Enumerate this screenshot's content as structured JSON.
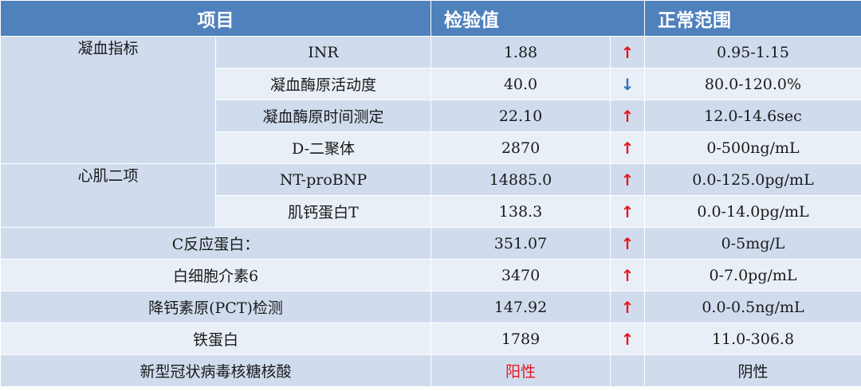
{
  "header": {
    "item": "项目",
    "value": "检验值",
    "range": "正常范围"
  },
  "groups": {
    "coag": "凝血指标",
    "cardiac": "心肌二项"
  },
  "rows": [
    {
      "name": "INR",
      "value": "1.88",
      "flag": "↑",
      "range": "0.95-1.15"
    },
    {
      "name": "凝血酶原活动度",
      "value": "40.0",
      "flag": "↓",
      "range": "80.0-120.0%"
    },
    {
      "name": "凝血酶原时间测定",
      "value": "22.10",
      "flag": "↑",
      "range": "12.0-14.6sec"
    },
    {
      "name": "D-二聚体",
      "value": "2870",
      "flag": "↑",
      "range": "0-500ng/mL"
    },
    {
      "name": "NT-proBNP",
      "value": "14885.0",
      "flag": "↑",
      "range": "0.0-125.0pg/mL"
    },
    {
      "name": "肌钙蛋白T",
      "value": "138.3",
      "flag": "↑",
      "range": "0.0-14.0pg/mL"
    },
    {
      "name": "C反应蛋白：",
      "value": "351.07",
      "flag": "↑",
      "range": "0-5mg/L"
    },
    {
      "name": "白细胞介素6",
      "value": "3470",
      "flag": "↑",
      "range": "0-7.0pg/mL"
    },
    {
      "name": "降钙素原(PCT)检测",
      "value": "147.92",
      "flag": "↑",
      "range": "0.0-0.5ng/mL"
    },
    {
      "name": "铁蛋白",
      "value": "1789",
      "flag": "↑",
      "range": "11.0-306.8"
    },
    {
      "name": "新型冠状病毒核糖核酸",
      "value": "阳性",
      "flag": "",
      "range": "阴性"
    }
  ],
  "colors": {
    "header": "#4f81bd",
    "row_dark": "#d0dcee",
    "row_light": "#e9eff7",
    "up": "#e8161b",
    "down": "#2e75b6"
  }
}
